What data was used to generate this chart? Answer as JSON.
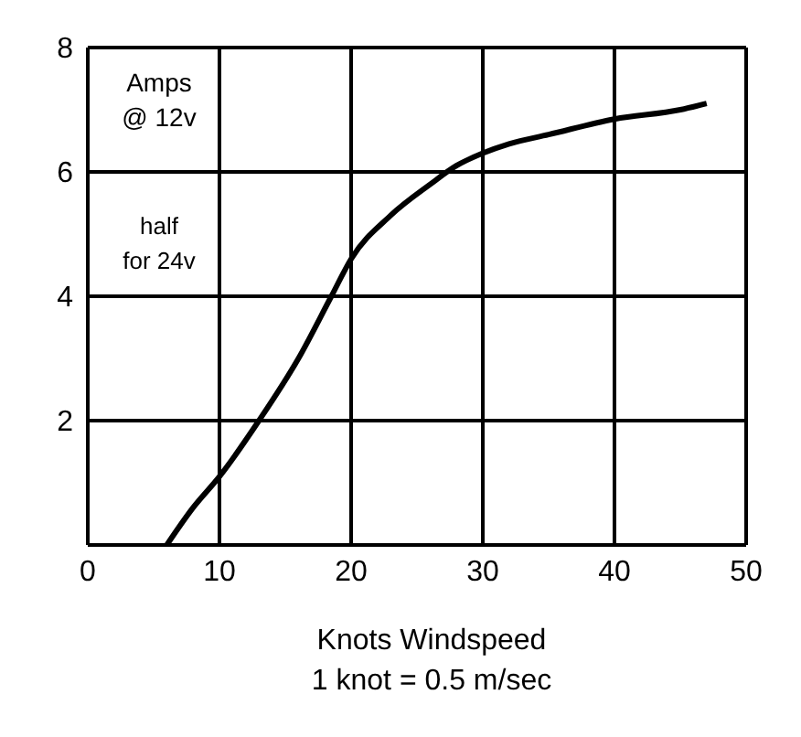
{
  "chart_data": {
    "type": "line",
    "xlabel": "Knots Windspeed",
    "annotations": [
      "Amps\n@ 12v",
      "half\nfor 24v",
      "1 knot = 0.5 m/sec"
    ],
    "x": [
      6,
      8,
      10,
      13,
      16,
      18.5,
      20,
      23,
      26,
      28,
      30,
      32,
      35,
      40,
      45,
      47
    ],
    "series": [
      {
        "color": "#000000",
        "values": [
          0,
          0.6,
          1.1,
          2,
          3,
          4,
          4.6,
          5.3,
          5.8,
          6.1,
          6.3,
          6.45,
          6.6,
          6.85,
          7.0,
          7.1
        ]
      }
    ],
    "xlim": [
      0,
      50
    ],
    "xticks": [
      0,
      10,
      20,
      30,
      40,
      50
    ],
    "ylim": [
      0,
      8
    ],
    "yticks": [
      {
        "value": 0,
        "label": null
      },
      2,
      4,
      6,
      8
    ],
    "grid": true,
    "marker": "none",
    "line_style": "solid"
  }
}
